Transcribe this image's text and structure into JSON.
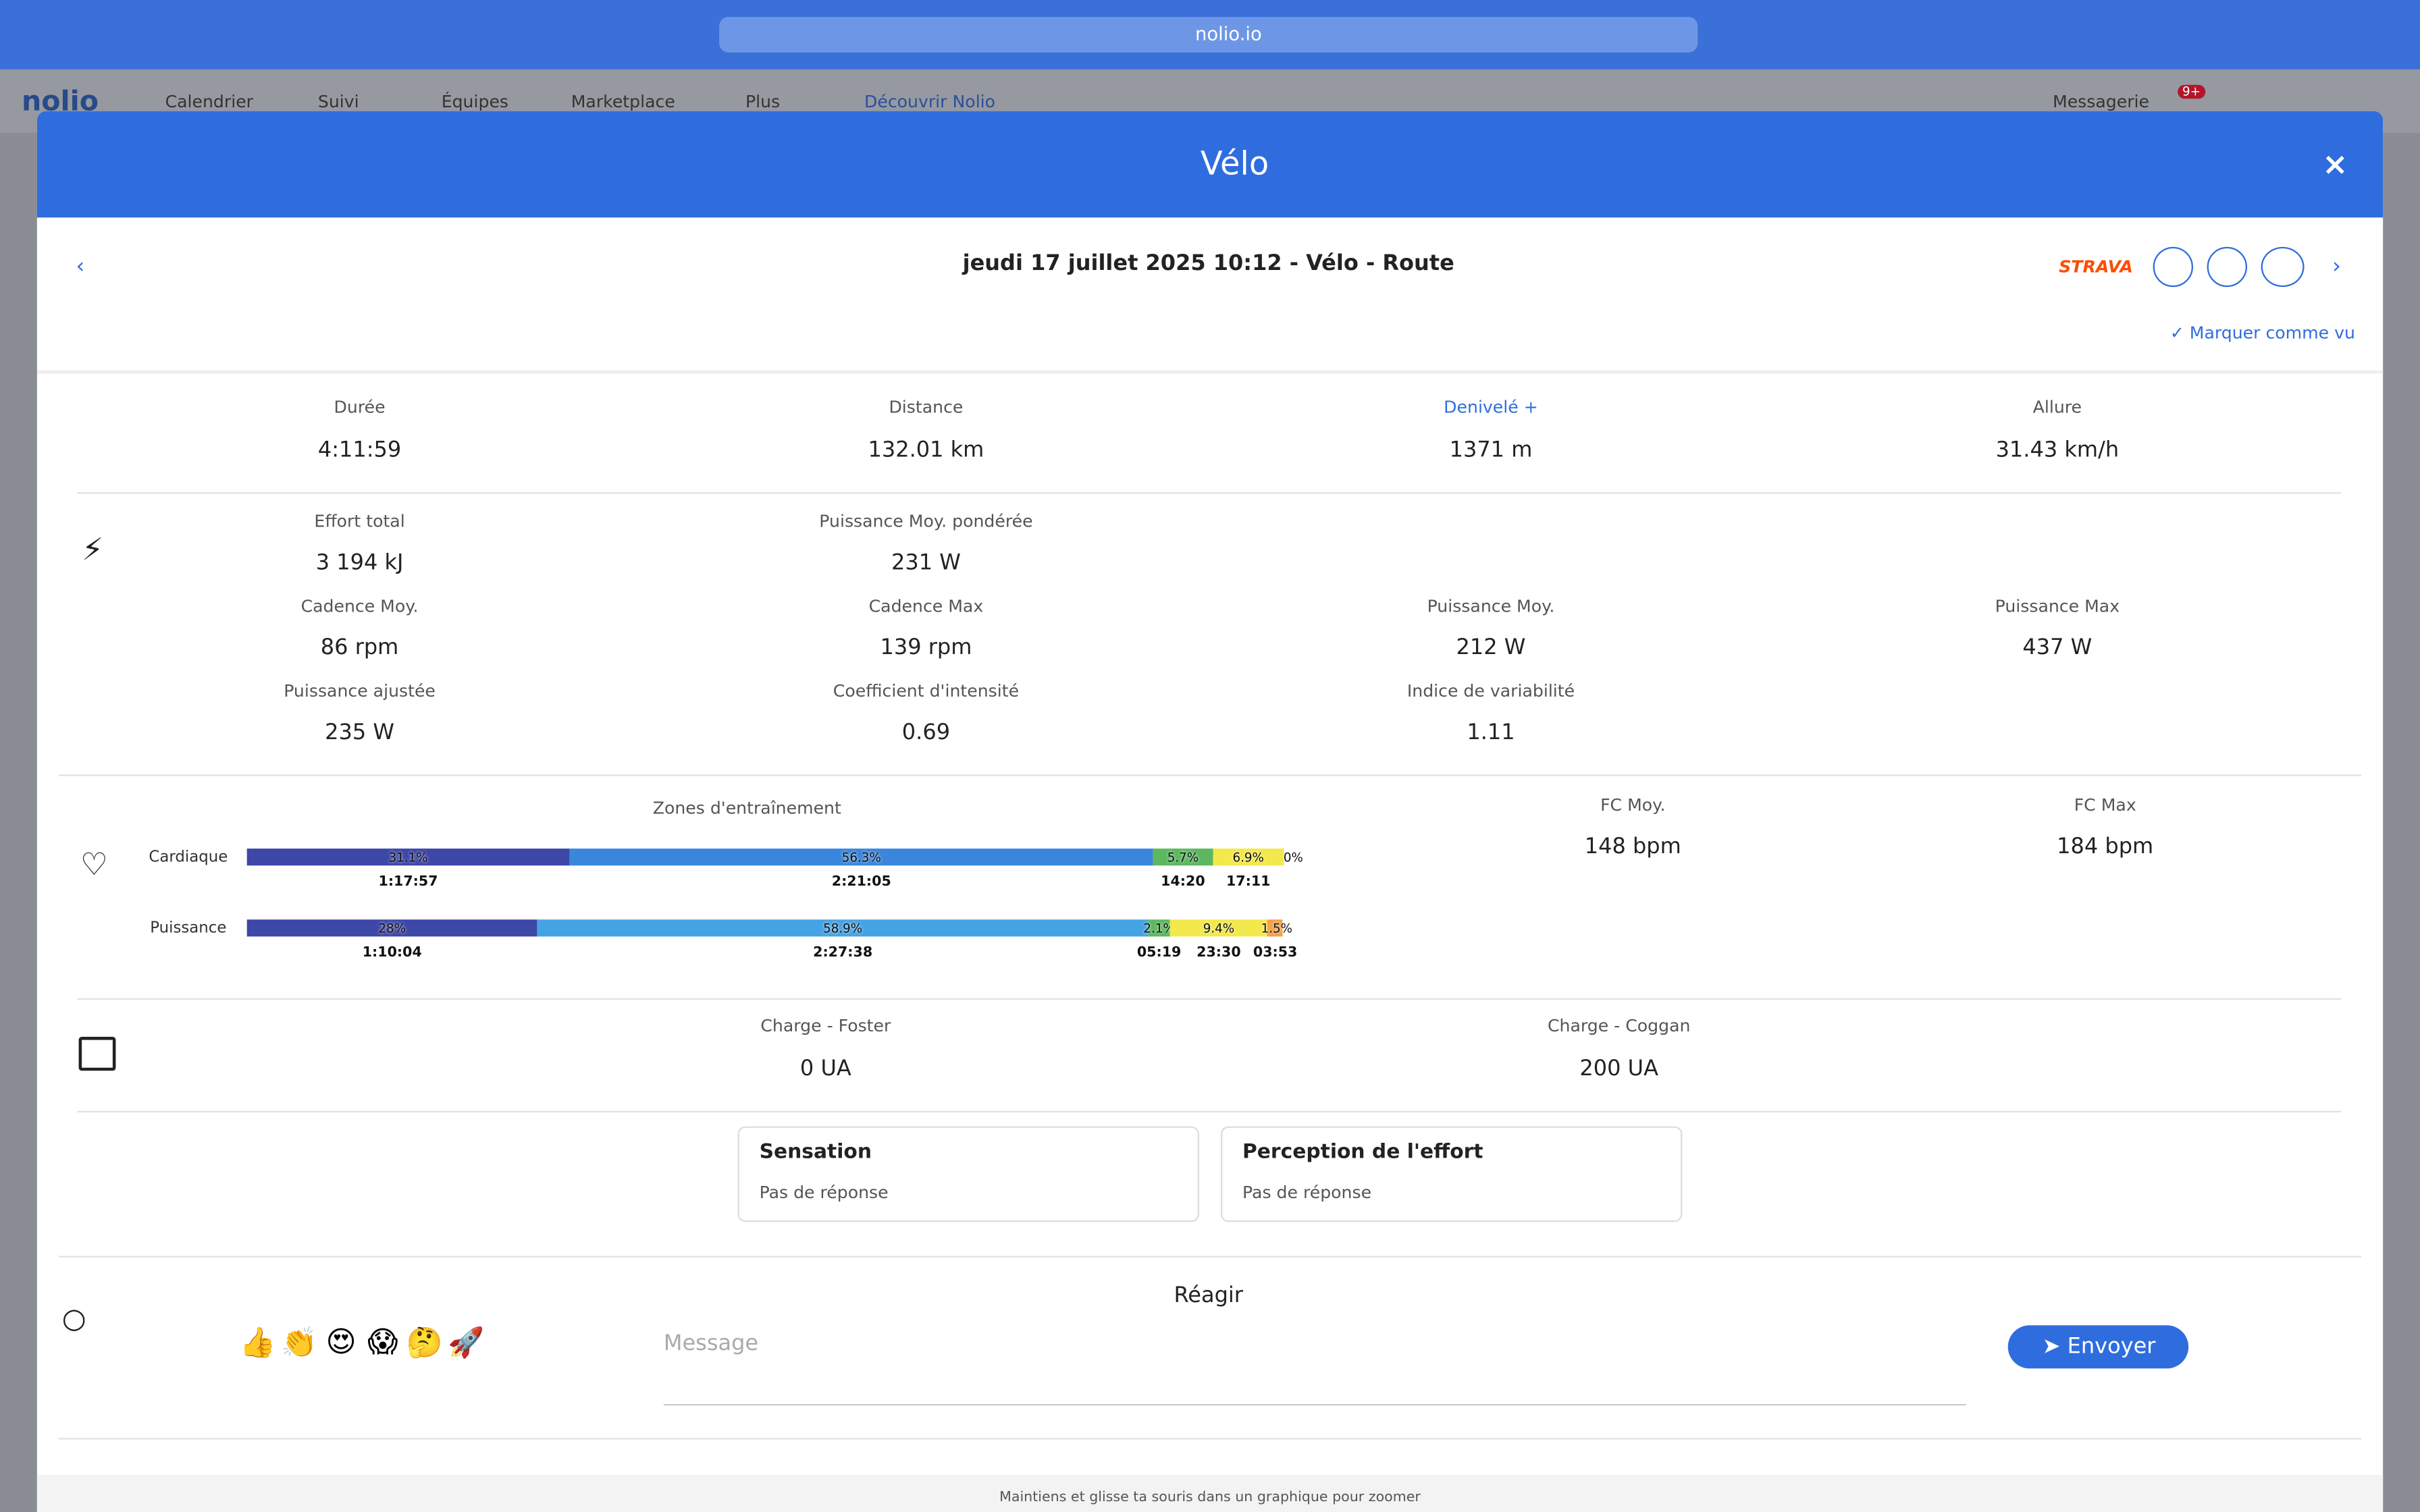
{
  "browser": {
    "url": "nolio.io"
  },
  "nav": {
    "logo": "nolio",
    "items": [
      "Calendrier",
      "Suivi",
      "Équipes",
      "Marketplace",
      "Plus",
      "Découvrir Nolio"
    ],
    "messages": "Messagerie",
    "badge": "9+"
  },
  "modal": {
    "title": "Vélo",
    "heading": "jeudi 17 juillet 2025 10:12 - Vélo - Route",
    "source": "STRAVA",
    "mark_seen": "Marquer comme vu",
    "summary": [
      {
        "label": "Durée",
        "value": "4:11:59"
      },
      {
        "label": "Distance",
        "value": "132.01 km"
      },
      {
        "label": "Denivelé +",
        "value": "1371 m"
      },
      {
        "label": "Allure",
        "value": "31.43 km/h"
      }
    ],
    "power": [
      [
        {
          "label": "Effort total",
          "value": "3 194 kJ"
        },
        {
          "label": "Puissance Moy. pondérée",
          "value": "231 W"
        },
        null,
        null
      ],
      [
        {
          "label": "Cadence Moy.",
          "value": "86 rpm"
        },
        {
          "label": "Cadence Max",
          "value": "139 rpm"
        },
        {
          "label": "Puissance Moy.",
          "value": "212 W"
        },
        {
          "label": "Puissance Max",
          "value": "437 W"
        }
      ],
      [
        {
          "label": "Puissance ajustée",
          "value": "235 W"
        },
        {
          "label": "Coefficient d'intensité",
          "value": "0.69"
        },
        {
          "label": "Indice de variabilité",
          "value": "1.11"
        },
        null
      ]
    ],
    "zones": {
      "title": "Zones d'entraînement",
      "colors": [
        "#3d47a8",
        "#3a86dc",
        "#5cb860",
        "#f3e84c",
        "#f0a24a"
      ],
      "rows": [
        {
          "name": "Cardiaque",
          "values": [
            31.1,
            56.3,
            5.7,
            6.9,
            0
          ],
          "value_labels": [
            "31.1%",
            "56.3%",
            "5.7%",
            "6.9%",
            "0%"
          ],
          "times": [
            "1:17:57",
            "2:21:05",
            "14:20",
            "17:11",
            null
          ],
          "colors": [
            "#3d47a8",
            "#3a86dc",
            "#5cb860",
            "#f3e84c",
            "#f0a24a"
          ]
        },
        {
          "name": "Puissance",
          "values": [
            28,
            58.9,
            2.1,
            9.4,
            1.5
          ],
          "value_labels": [
            "28%",
            "58.9%",
            "2.1%",
            "9.4%",
            "1.5%"
          ],
          "times": [
            "1:10:04",
            "2:27:38",
            "05:19",
            "23:30",
            "03:53"
          ],
          "colors": [
            "#3d47a8",
            "#46a3e3",
            "#5cb860",
            "#f3e84c",
            "#f0a24a"
          ]
        }
      ]
    },
    "heart": [
      {
        "label": "FC Moy.",
        "value": "148 bpm"
      },
      {
        "label": "FC Max",
        "value": "184 bpm"
      }
    ],
    "load": [
      {
        "label": "Charge - Foster",
        "value": "0 UA"
      },
      {
        "label": "Charge - Coggan",
        "value": "200 UA"
      }
    ],
    "feedback": [
      {
        "title": "Sensation",
        "text": "Pas de réponse"
      },
      {
        "title": "Perception de l'effort",
        "text": "Pas de réponse"
      }
    ],
    "react": {
      "title": "Réagir",
      "emojis": [
        "👍",
        "👏",
        "😍",
        "😱",
        "🤔",
        "🚀"
      ],
      "placeholder": "Message",
      "button": "Envoyer"
    },
    "footer": "Maintiens et glisse ta souris dans un graphique pour zoomer"
  }
}
